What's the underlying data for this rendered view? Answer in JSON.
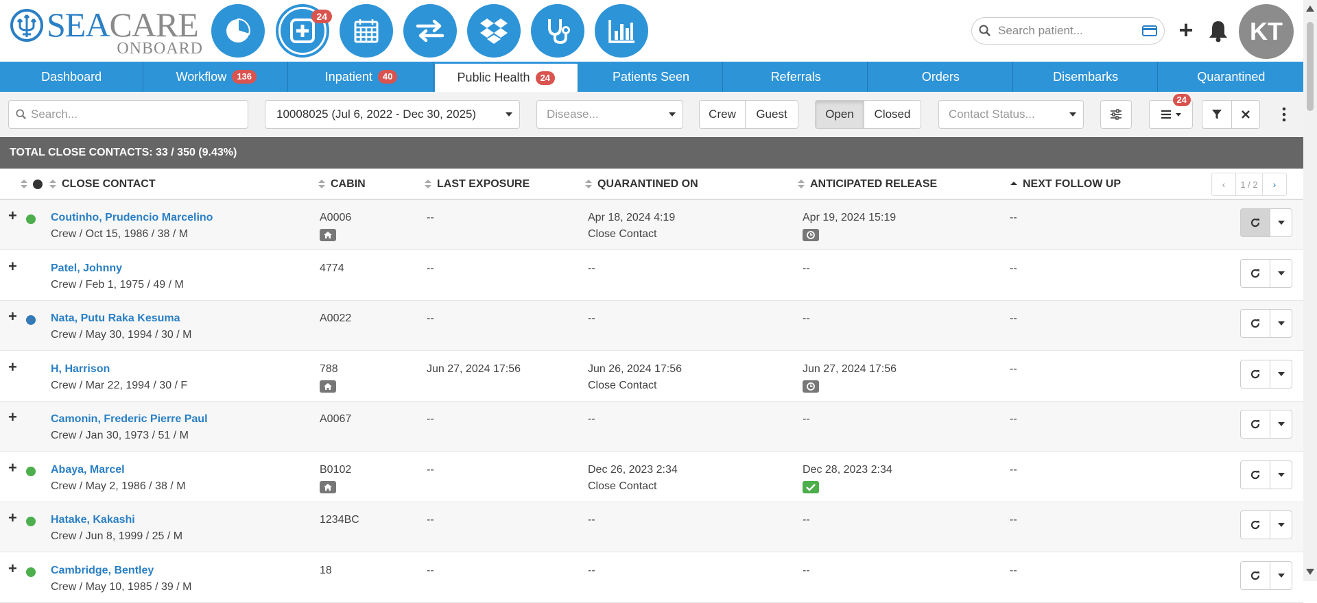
{
  "app": {
    "brand_sea": "SEA",
    "brand_care": "CARE",
    "brand_sub": "ONBOARD"
  },
  "nav_icons": [
    {
      "name": "dashboard-pie-icon",
      "badge": ""
    },
    {
      "name": "medical-plus-icon",
      "badge": "24"
    },
    {
      "name": "calendar-icon",
      "badge": ""
    },
    {
      "name": "transfer-arrows-icon",
      "badge": ""
    },
    {
      "name": "dropbox-icon",
      "badge": ""
    },
    {
      "name": "stethoscope-icon",
      "badge": ""
    },
    {
      "name": "bar-chart-icon",
      "badge": ""
    }
  ],
  "header": {
    "search_placeholder": "Search patient...",
    "avatar_initials": "KT"
  },
  "tabs": [
    {
      "label": "Dashboard",
      "badge": ""
    },
    {
      "label": "Workflow",
      "badge": "136"
    },
    {
      "label": "Inpatient",
      "badge": "40"
    },
    {
      "label": "Public Health",
      "badge": "24"
    },
    {
      "label": "Patients Seen",
      "badge": ""
    },
    {
      "label": "Referrals",
      "badge": ""
    },
    {
      "label": "Orders",
      "badge": ""
    },
    {
      "label": "Disembarks",
      "badge": ""
    },
    {
      "label": "Quarantined",
      "badge": ""
    }
  ],
  "filters": {
    "search_placeholder": "Search...",
    "voyage": "10008025 (Jul 6, 2022 - Dec 30, 2025)",
    "disease_placeholder": "Disease...",
    "crew_label": "Crew",
    "guest_label": "Guest",
    "open_label": "Open",
    "closed_label": "Closed",
    "contact_status_placeholder": "Contact Status...",
    "list_badge": "24"
  },
  "summary": "TOTAL CLOSE CONTACTS: 33 / 350 (9.43%)",
  "table": {
    "columns": {
      "close_contact": "CLOSE CONTACT",
      "cabin": "CABIN",
      "last_exposure": "LAST EXPOSURE",
      "quarantined_on": "QUARANTINED ON",
      "anticipated_release": "ANTICIPATED RELEASE",
      "next_follow_up": "NEXT FOLLOW UP"
    },
    "pager": "1 / 2",
    "rows": [
      {
        "name": "Coutinho, Prudencio Marcelino",
        "info": "Crew / Oct 15, 1986 / 38 / M",
        "dot": "#4cae4c",
        "cabin": "A0006",
        "cabin_tag": "home",
        "last_exposure": "--",
        "quarantined_on": "Apr 18, 2024 4:19",
        "quarantine_type": "Close Contact",
        "release": "Apr 19, 2024 15:19",
        "release_tag": "clock",
        "follow_up": "--"
      },
      {
        "name": "Patel, Johnny",
        "info": "Crew / Feb 1, 1975 / 49 / M",
        "dot": "",
        "cabin": "4774",
        "cabin_tag": "",
        "last_exposure": "--",
        "quarantined_on": "--",
        "quarantine_type": "",
        "release": "--",
        "release_tag": "",
        "follow_up": "--"
      },
      {
        "name": "Nata, Putu Raka Kesuma",
        "info": "Crew / May 30, 1994 / 30 / M",
        "dot": "#337ab7",
        "cabin": "A0022",
        "cabin_tag": "",
        "last_exposure": "--",
        "quarantined_on": "--",
        "quarantine_type": "",
        "release": "--",
        "release_tag": "",
        "follow_up": "--"
      },
      {
        "name": "H, Harrison",
        "info": "Crew / Mar 22, 1994 / 30 / F",
        "dot": "",
        "cabin": "788",
        "cabin_tag": "home",
        "last_exposure": "Jun 27, 2024 17:56",
        "quarantined_on": "Jun 26, 2024 17:56",
        "quarantine_type": "Close Contact",
        "release": "Jun 27, 2024 17:56",
        "release_tag": "clock",
        "follow_up": "--"
      },
      {
        "name": "Camonin, Frederic Pierre Paul",
        "info": "Crew / Jan 30, 1973 / 51 / M",
        "dot": "",
        "cabin": "A0067",
        "cabin_tag": "",
        "last_exposure": "--",
        "quarantined_on": "--",
        "quarantine_type": "",
        "release": "--",
        "release_tag": "",
        "follow_up": "--"
      },
      {
        "name": "Abaya, Marcel",
        "info": "Crew / May 2, 1986 / 38 / M",
        "dot": "#4cae4c",
        "cabin": "B0102",
        "cabin_tag": "home",
        "last_exposure": "--",
        "quarantined_on": "Dec 26, 2023 2:34",
        "quarantine_type": "Close Contact",
        "release": "Dec 28, 2023 2:34",
        "release_tag": "check",
        "follow_up": "--"
      },
      {
        "name": "Hatake, Kakashi",
        "info": "Crew / Jun 8, 1999 / 25 / M",
        "dot": "#4cae4c",
        "cabin": "1234BC",
        "cabin_tag": "",
        "last_exposure": "--",
        "quarantined_on": "--",
        "quarantine_type": "",
        "release": "--",
        "release_tag": "",
        "follow_up": "--"
      },
      {
        "name": "Cambridge, Bentley",
        "info": "Crew / May 10, 1985 / 39 / M",
        "dot": "#4cae4c",
        "cabin": "18",
        "cabin_tag": "",
        "last_exposure": "--",
        "quarantined_on": "--",
        "quarantine_type": "",
        "release": "--",
        "release_tag": "",
        "follow_up": "--"
      }
    ]
  },
  "colors": {
    "primary": "#2e94d8",
    "badge": "#d9534f",
    "summary_bg": "#666666",
    "link": "#2a7fc5"
  }
}
